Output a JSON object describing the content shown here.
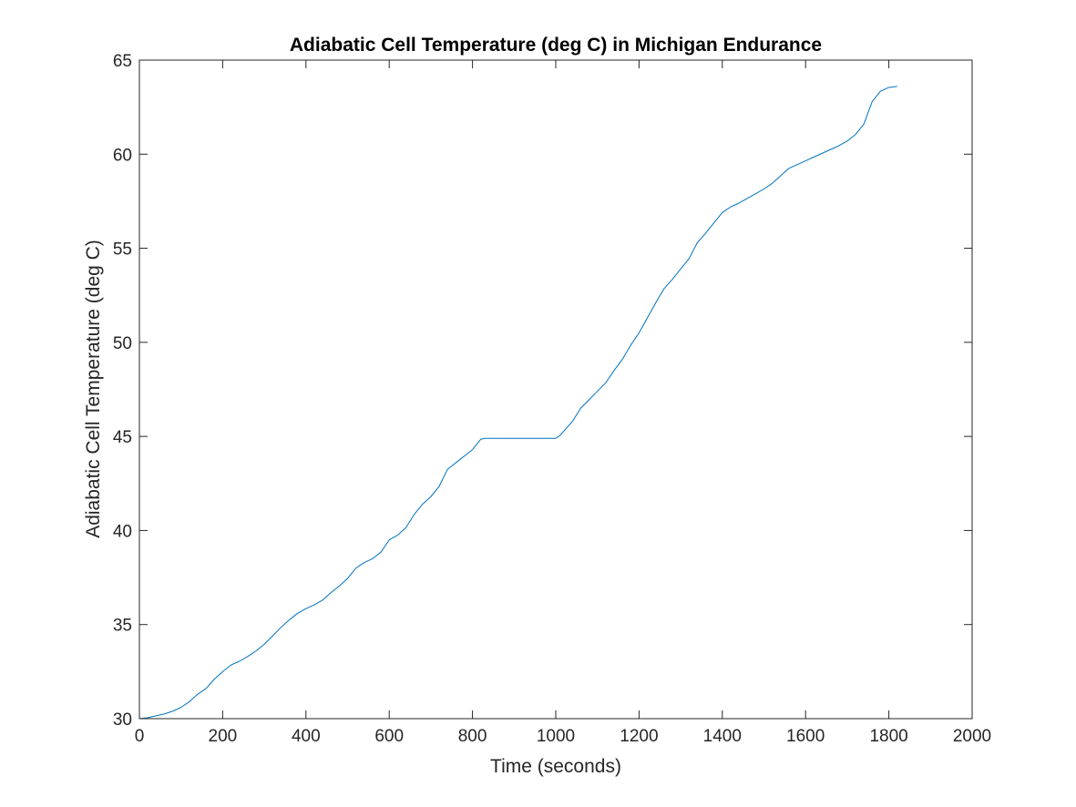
{
  "chart_data": {
    "type": "line",
    "title": "Adiabatic Cell Temperature (deg C) in Michigan Endurance",
    "xlabel": "Time (seconds)",
    "ylabel": "Adiabatic Cell Temperature (deg C)",
    "xlim": [
      0,
      2000
    ],
    "ylim": [
      30,
      65
    ],
    "xticks": [
      0,
      200,
      400,
      600,
      800,
      1000,
      1200,
      1400,
      1600,
      1800,
      2000
    ],
    "yticks": [
      30,
      35,
      40,
      45,
      50,
      55,
      60,
      65
    ],
    "grid": false,
    "box": true,
    "line_color": "#0072BD",
    "axis_color": "#262626",
    "series": [
      {
        "x": [
          0,
          20,
          40,
          60,
          80,
          100,
          120,
          140,
          160,
          180,
          200,
          220,
          240,
          260,
          280,
          300,
          320,
          340,
          360,
          380,
          400,
          420,
          440,
          460,
          480,
          500,
          520,
          540,
          560,
          580,
          600,
          620,
          640,
          660,
          680,
          700,
          720,
          740,
          760,
          780,
          800,
          820,
          830,
          850,
          900,
          950,
          1000,
          1010,
          1020,
          1040,
          1060,
          1080,
          1100,
          1120,
          1140,
          1160,
          1180,
          1200,
          1220,
          1240,
          1260,
          1280,
          1300,
          1320,
          1340,
          1360,
          1380,
          1400,
          1420,
          1440,
          1460,
          1480,
          1500,
          1520,
          1540,
          1560,
          1580,
          1600,
          1620,
          1640,
          1660,
          1680,
          1700,
          1720,
          1740,
          1750,
          1760,
          1780,
          1800,
          1820
        ],
        "y": [
          30.0,
          30.05,
          30.15,
          30.25,
          30.4,
          30.6,
          30.9,
          31.3,
          31.6,
          32.1,
          32.5,
          32.85,
          33.05,
          33.3,
          33.6,
          33.95,
          34.4,
          34.85,
          35.25,
          35.6,
          35.85,
          36.05,
          36.3,
          36.7,
          37.05,
          37.45,
          38.0,
          38.3,
          38.5,
          38.85,
          39.5,
          39.75,
          40.15,
          40.85,
          41.4,
          41.8,
          42.35,
          43.25,
          43.6,
          43.95,
          44.3,
          44.85,
          44.9,
          44.9,
          44.9,
          44.9,
          44.9,
          45.05,
          45.3,
          45.8,
          46.5,
          46.95,
          47.4,
          47.85,
          48.5,
          49.1,
          49.85,
          50.5,
          51.3,
          52.1,
          52.85,
          53.35,
          53.9,
          54.45,
          55.3,
          55.8,
          56.35,
          56.9,
          57.2,
          57.4,
          57.65,
          57.9,
          58.15,
          58.45,
          58.85,
          59.25,
          59.45,
          59.65,
          59.85,
          60.05,
          60.25,
          60.45,
          60.7,
          61.05,
          61.6,
          62.2,
          62.8,
          63.35,
          63.55,
          63.6
        ]
      }
    ]
  }
}
